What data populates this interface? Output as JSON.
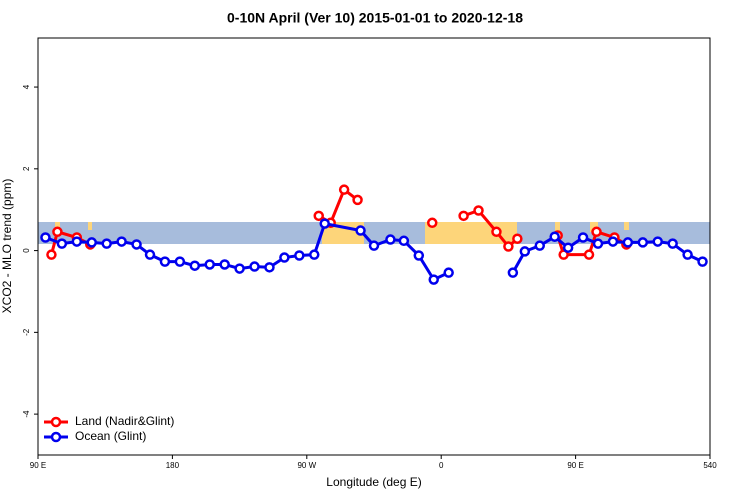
{
  "chart_data": {
    "type": "line",
    "title": "0-10N April (Ver 10)   2015-01-01 to 2020-12-18",
    "x_label": "Longitude (deg E)",
    "y_label": "XCO2 - MLO trend (ppm)",
    "xlim": [
      90,
      540
    ],
    "ylim": [
      -5,
      5.2
    ],
    "xticks": [
      {
        "value": 90,
        "label": "90 E"
      },
      180,
      {
        "value": 270,
        "label": "90 W"
      },
      {
        "value": 360,
        "label": "0"
      },
      {
        "value": 450,
        "label": "90 E"
      },
      540
    ],
    "yticks": [
      -4,
      -2,
      0,
      2,
      4
    ],
    "legend": "bottom-left",
    "series": [
      {
        "name": "Land (Nadir&Glint)",
        "color": "#ff0000",
        "x": [
          99,
          103,
          116,
          125,
          null,
          278,
          286,
          295,
          304,
          null,
          354,
          null,
          375,
          385,
          397,
          405,
          411,
          null,
          438,
          442,
          459,
          464,
          476,
          484
        ],
        "values": [
          -0.1,
          0.46,
          0.32,
          0.15,
          null,
          0.85,
          0.68,
          1.49,
          1.24,
          null,
          0.68,
          null,
          0.85,
          0.98,
          0.46,
          0.1,
          0.29,
          null,
          0.37,
          -0.1,
          -0.1,
          0.46,
          0.32,
          0.15
        ]
      },
      {
        "name": "Ocean (Glint)",
        "color": "#0000ee",
        "x": [
          95,
          106,
          116,
          126,
          136,
          146,
          156,
          165,
          175,
          185,
          195,
          205,
          215,
          225,
          235,
          245,
          255,
          265,
          275,
          282,
          306,
          315,
          326,
          335,
          345,
          355,
          365,
          null,
          408,
          416,
          426,
          436,
          445,
          455,
          465,
          475,
          485,
          495,
          505,
          515,
          525,
          535
        ],
        "values": [
          0.32,
          0.17,
          0.22,
          0.2,
          0.17,
          0.22,
          0.15,
          -0.1,
          -0.27,
          -0.27,
          -0.37,
          -0.34,
          -0.34,
          -0.44,
          -0.39,
          -0.41,
          -0.17,
          -0.12,
          -0.1,
          0.66,
          0.49,
          0.12,
          0.27,
          0.24,
          -0.12,
          -0.71,
          -0.54,
          null,
          -0.54,
          -0.02,
          0.12,
          0.34,
          0.07,
          0.32,
          0.17,
          0.22,
          0.2,
          0.2,
          0.22,
          0.17,
          -0.1,
          -0.27
        ]
      }
    ]
  }
}
